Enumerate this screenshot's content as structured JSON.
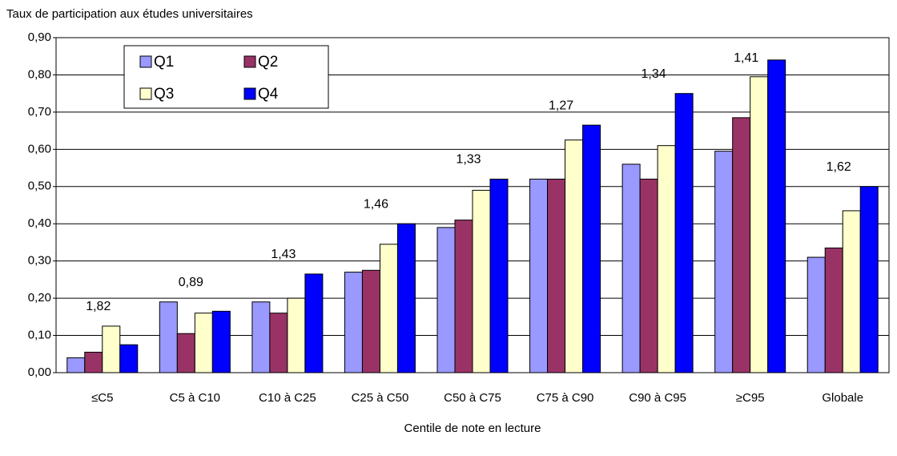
{
  "chart_data": {
    "type": "bar",
    "title": "Taux de participation aux études universitaires",
    "x_label": "Centile de note en lecture",
    "categories": [
      "≤C5",
      "C5 à C10",
      "C10 à C25",
      "C25 à C50",
      "C50 à C75",
      "C75 à C90",
      "C90 à C95",
      "≥C95",
      "Globale"
    ],
    "series": [
      {
        "name": "Q1",
        "color": "#9999ff",
        "values": [
          0.04,
          0.19,
          0.19,
          0.27,
          0.39,
          0.52,
          0.56,
          0.595,
          0.31
        ]
      },
      {
        "name": "Q2",
        "color": "#993366",
        "values": [
          0.055,
          0.105,
          0.16,
          0.275,
          0.41,
          0.52,
          0.52,
          0.685,
          0.335
        ]
      },
      {
        "name": "Q3",
        "color": "#ffffcc",
        "values": [
          0.125,
          0.16,
          0.2,
          0.345,
          0.49,
          0.625,
          0.61,
          0.795,
          0.435
        ]
      },
      {
        "name": "Q4",
        "color": "#0000ff",
        "values": [
          0.075,
          0.165,
          0.265,
          0.4,
          0.52,
          0.665,
          0.75,
          0.84,
          0.5
        ]
      }
    ],
    "ratio_labels": [
      "1,82",
      "0,89",
      "1,43",
      "1,46",
      "1,33",
      "1,27",
      "1,34",
      "1,41",
      "1,62"
    ],
    "ylim": [
      0,
      0.9
    ],
    "yticks": [
      {
        "value": 0,
        "label": "0,00"
      },
      {
        "value": 0.1,
        "label": "0,10"
      },
      {
        "value": 0.2,
        "label": "0,20"
      },
      {
        "value": 0.3,
        "label": "0,30"
      },
      {
        "value": 0.4,
        "label": "0,40"
      },
      {
        "value": 0.5,
        "label": "0,50"
      },
      {
        "value": 0.6,
        "label": "0,60"
      },
      {
        "value": 0.7,
        "label": "0,70"
      },
      {
        "value": 0.8,
        "label": "0,80"
      },
      {
        "value": 0.9,
        "label": "0,90"
      }
    ],
    "grid": true,
    "legend": "top-left"
  }
}
